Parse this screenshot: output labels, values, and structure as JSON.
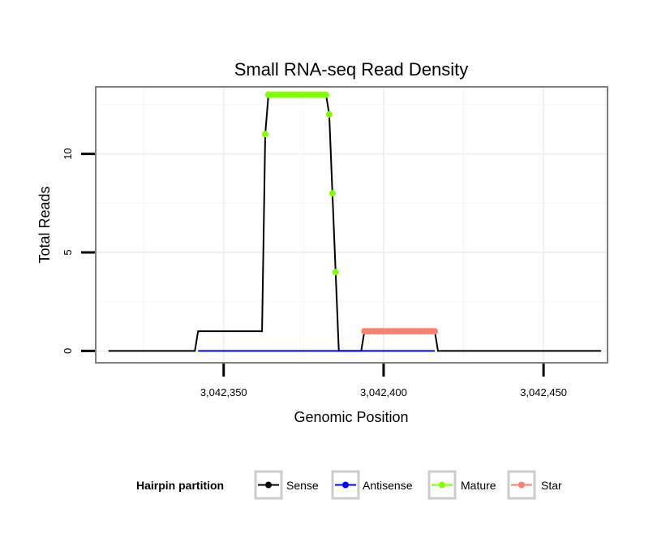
{
  "chart_data": {
    "type": "line",
    "title": "Small RNA-seq Read Density",
    "xlabel": "Genomic Position",
    "ylabel": "Total Reads",
    "xlim": [
      3042310,
      3042470
    ],
    "ylim": [
      -0.6,
      13.4
    ],
    "x_ticks": [
      3042350,
      3042400,
      3042450
    ],
    "x_tick_labels": [
      "3,042,350",
      "3,042,400",
      "3,042,450"
    ],
    "y_ticks": [
      0,
      5,
      10
    ],
    "y_tick_labels": [
      "0",
      "5",
      "10"
    ],
    "grid": true,
    "legend": {
      "title": "Hairpin partition",
      "position": "bottom",
      "entries": [
        {
          "label": "Sense",
          "color": "#000000"
        },
        {
          "label": "Antisense",
          "color": "#0000ff"
        },
        {
          "label": "Mature",
          "color": "#7fff00"
        },
        {
          "label": "Star",
          "color": "#fa8072"
        }
      ]
    },
    "series": [
      {
        "name": "Sense",
        "color": "#000000",
        "x": [
          3042314,
          3042341,
          3042342,
          3042362,
          3042363,
          3042364,
          3042382,
          3042383,
          3042384,
          3042385,
          3042386,
          3042393,
          3042394,
          3042416,
          3042417,
          3042468
        ],
        "values": [
          0,
          0,
          1,
          1,
          11,
          13,
          13,
          12,
          8,
          4,
          0,
          0,
          1,
          1,
          0,
          0
        ]
      },
      {
        "name": "Antisense",
        "color": "#0000ff",
        "x": [
          3042342,
          3042416
        ],
        "values": [
          0,
          0
        ]
      },
      {
        "name": "Mature",
        "color": "#7fff00",
        "x": [
          3042363,
          3042364,
          3042365,
          3042366,
          3042367,
          3042368,
          3042369,
          3042370,
          3042371,
          3042372,
          3042373,
          3042374,
          3042375,
          3042376,
          3042377,
          3042378,
          3042379,
          3042380,
          3042381,
          3042382,
          3042383,
          3042384,
          3042385
        ],
        "values": [
          11,
          13,
          13,
          13,
          13,
          13,
          13,
          13,
          13,
          13,
          13,
          13,
          13,
          13,
          13,
          13,
          13,
          13,
          13,
          13,
          12,
          8,
          4
        ]
      },
      {
        "name": "Star",
        "color": "#fa8072",
        "x": [
          3042394,
          3042395,
          3042396,
          3042397,
          3042398,
          3042399,
          3042400,
          3042401,
          3042402,
          3042403,
          3042404,
          3042405,
          3042406,
          3042407,
          3042408,
          3042409,
          3042410,
          3042411,
          3042412,
          3042413,
          3042414,
          3042415,
          3042416
        ],
        "values": [
          1,
          1,
          1,
          1,
          1,
          1,
          1,
          1,
          1,
          1,
          1,
          1,
          1,
          1,
          1,
          1,
          1,
          1,
          1,
          1,
          1,
          1,
          1
        ]
      }
    ]
  }
}
